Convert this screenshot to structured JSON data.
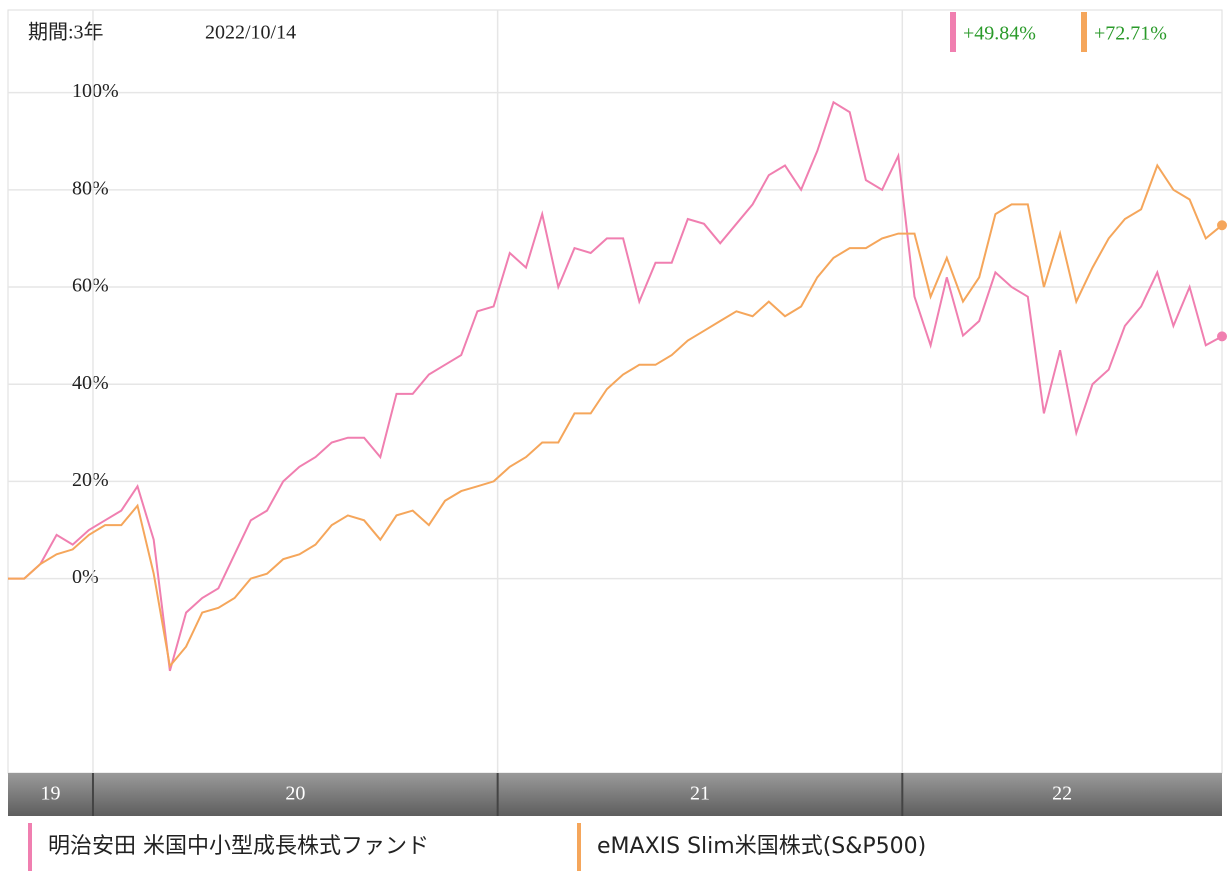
{
  "chart_data": {
    "type": "line",
    "period_label": "期間:3年",
    "date_label": "2022/10/14",
    "x": [
      19.79,
      19.83,
      19.87,
      19.91,
      19.95,
      19.99,
      20.03,
      20.07,
      20.11,
      20.15,
      20.19,
      20.23,
      20.27,
      20.31,
      20.35,
      20.39,
      20.43,
      20.47,
      20.51,
      20.55,
      20.59,
      20.63,
      20.67,
      20.71,
      20.75,
      20.79,
      20.83,
      20.87,
      20.91,
      20.95,
      20.99,
      21.03,
      21.07,
      21.11,
      21.15,
      21.19,
      21.23,
      21.27,
      21.31,
      21.35,
      21.39,
      21.43,
      21.47,
      21.51,
      21.55,
      21.59,
      21.63,
      21.67,
      21.71,
      21.75,
      21.79,
      21.83,
      21.87,
      21.91,
      21.95,
      21.99,
      22.03,
      22.07,
      22.11,
      22.15,
      22.19,
      22.23,
      22.27,
      22.31,
      22.35,
      22.39,
      22.43,
      22.47,
      22.51,
      22.55,
      22.59,
      22.63,
      22.67,
      22.71,
      22.75,
      22.79
    ],
    "xlim": [
      19.79,
      22.79
    ],
    "xticks": [
      20,
      21,
      22
    ],
    "x_band_labels": [
      19,
      20,
      21,
      22
    ],
    "ylim": [
      -40,
      117
    ],
    "yticks": [
      {
        "value": 0,
        "label": "0%"
      },
      {
        "value": 20,
        "label": "20%"
      },
      {
        "value": 40,
        "label": "40%"
      },
      {
        "value": 60,
        "label": "60%"
      },
      {
        "value": 80,
        "label": "80%"
      },
      {
        "value": 100,
        "label": "100%"
      }
    ],
    "grid": true,
    "series": [
      {
        "name": "明治安田 米国中小型成長株式ファンド",
        "color": "#f07fb0",
        "return_label": "+49.84%",
        "values": [
          0,
          0,
          3,
          9,
          7,
          10,
          12,
          14,
          19,
          8,
          -19,
          -7,
          -4,
          -2,
          5,
          12,
          14,
          20,
          23,
          25,
          28,
          29,
          29,
          25,
          38,
          38,
          42,
          44,
          46,
          55,
          56,
          67,
          64,
          75,
          60,
          68,
          67,
          70,
          70,
          57,
          65,
          65,
          74,
          73,
          69,
          73,
          77,
          83,
          85,
          80,
          88,
          98,
          96,
          82,
          80,
          87,
          58,
          48,
          62,
          50,
          53,
          63,
          60,
          58,
          34,
          47,
          30,
          40,
          43,
          52,
          56,
          63,
          52,
          60,
          48,
          49.84
        ]
      },
      {
        "name": "eMAXIS Slim米国株式(S&P500)",
        "color": "#f5a65b",
        "return_label": "+72.71%",
        "values": [
          0,
          0,
          3,
          5,
          6,
          9,
          11,
          11,
          15,
          1,
          -18,
          -14,
          -7,
          -6,
          -4,
          0,
          1,
          4,
          5,
          7,
          11,
          13,
          12,
          8,
          13,
          14,
          11,
          16,
          18,
          19,
          20,
          23,
          25,
          28,
          28,
          34,
          34,
          39,
          42,
          44,
          44,
          46,
          49,
          51,
          53,
          55,
          54,
          57,
          54,
          56,
          62,
          66,
          68,
          68,
          70,
          71,
          71,
          58,
          66,
          57,
          62,
          75,
          77,
          77,
          60,
          71,
          57,
          64,
          70,
          74,
          76,
          85,
          80,
          78,
          70,
          72.71
        ]
      }
    ]
  }
}
